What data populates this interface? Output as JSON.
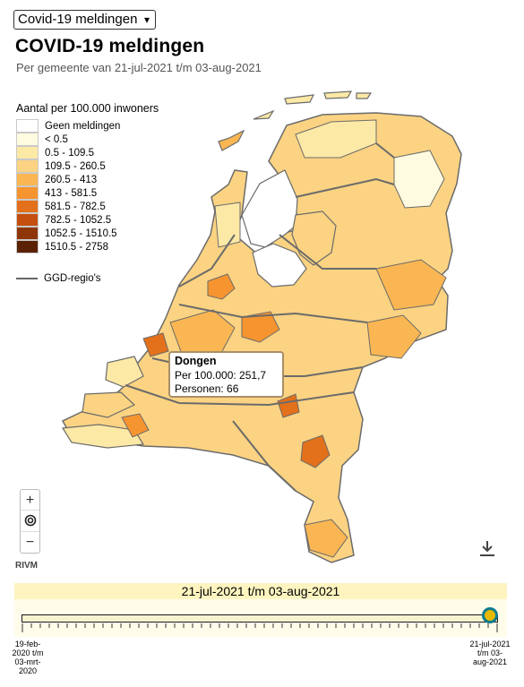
{
  "selector": {
    "value": "Covid-19 meldingen",
    "chevron": "chevron-down-icon"
  },
  "header": {
    "title": "COVID-19 meldingen",
    "subtitle": "Per gemeente van 21-jul-2021 t/m 03-aug-2021"
  },
  "legend": {
    "title": "Aantal per 100.000 inwoners",
    "items": [
      {
        "label": "Geen meldingen",
        "color": "#ffffff"
      },
      {
        "label": "< 0.5",
        "color": "#fffbe0"
      },
      {
        "label": "0.5 - 109.5",
        "color": "#fde9a6"
      },
      {
        "label": "109.5 - 260.5",
        "color": "#fbd382"
      },
      {
        "label": "260.5 - 413",
        "color": "#f9b652"
      },
      {
        "label": "413 - 581.5",
        "color": "#f69430"
      },
      {
        "label": "581.5 - 782.5",
        "color": "#e3701a"
      },
      {
        "label": "782.5 - 1052.5",
        "color": "#c44f0e"
      },
      {
        "label": "1052.5 - 1510.5",
        "color": "#8f3608"
      },
      {
        "label": "1510.5 - 2758",
        "color": "#5a2104"
      }
    ],
    "ggd_label": "GGD-regio's"
  },
  "map": {
    "country_fill": "#fbd382",
    "border_color": "#6b6b6b",
    "water_color": "#ffffff"
  },
  "tooltip": {
    "name": "Dongen",
    "per100k": "Per 100.000: 251,7",
    "persons": "Personen: 66"
  },
  "controls": {
    "zoom_in": "+",
    "locate_icon": "target-icon",
    "zoom_out": "−",
    "download_icon": "download-icon"
  },
  "attribution": "RIVM",
  "timeline": {
    "range_label": "21-jul-2021 t/m 03-aug-2021",
    "start_label": "19-feb-2020 t/m 03-mrt-2020",
    "start_lines": [
      "19-feb-",
      "2020 t/m",
      "03-mrt-",
      "2020"
    ],
    "end_lines": [
      "21-jul-2021",
      "t/m 03-",
      "aug-2021"
    ],
    "position": 1.0
  }
}
